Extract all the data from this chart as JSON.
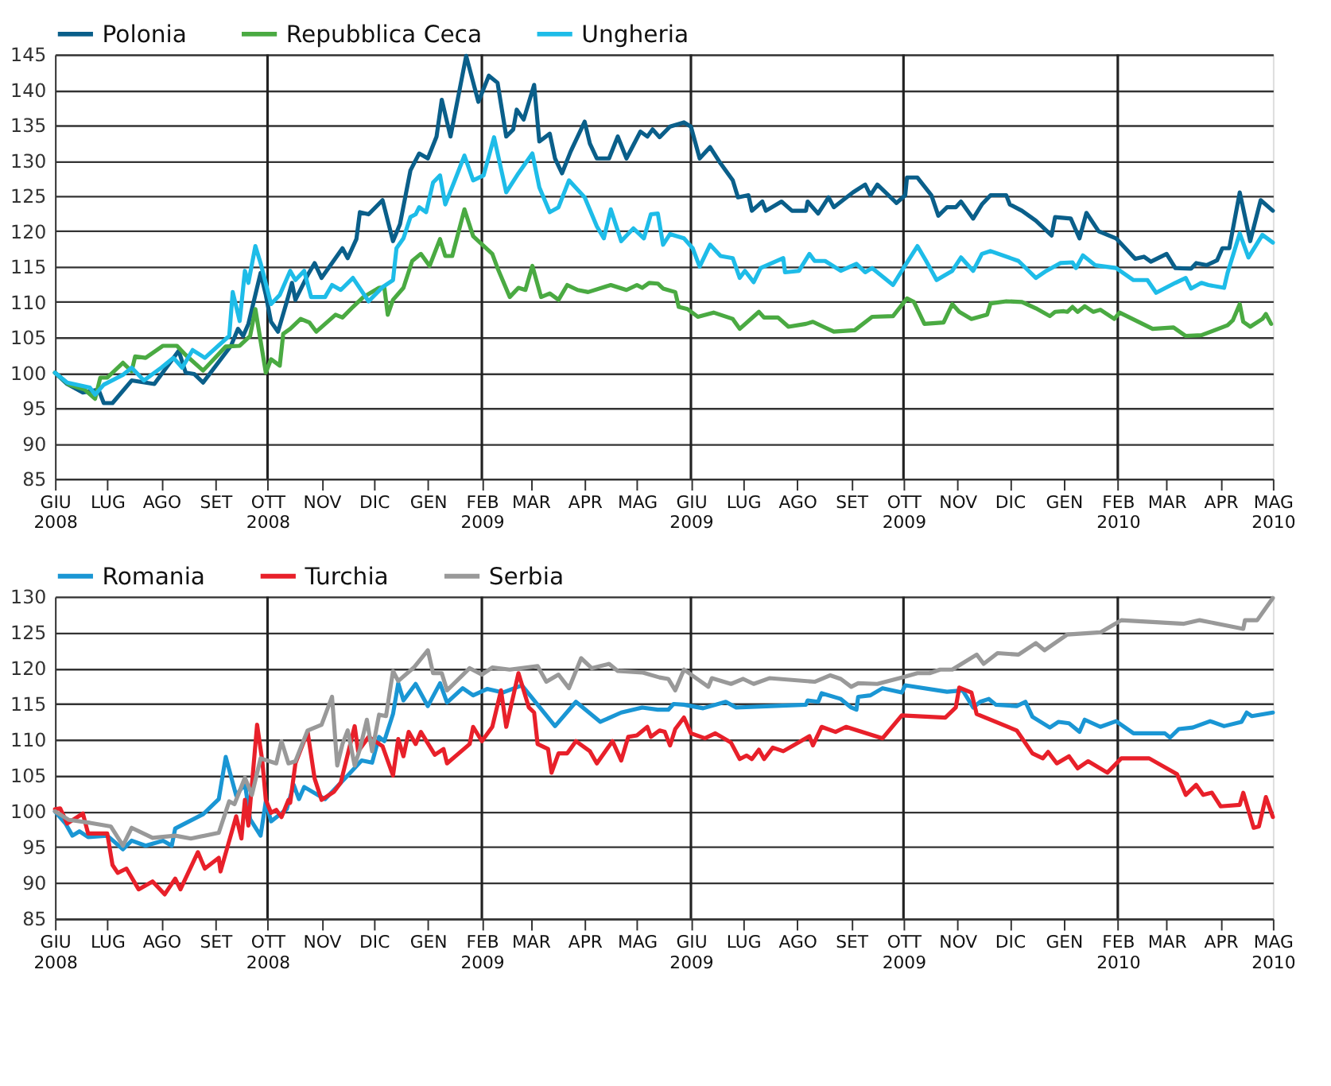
{
  "chart_data": [
    {
      "type": "line",
      "xlim": [
        "2008-06-01",
        "2010-05-01"
      ],
      "ylim": [
        85,
        145
      ],
      "yticks": [
        85,
        90,
        95,
        100,
        105,
        110,
        115,
        120,
        125,
        130,
        135,
        140,
        145
      ],
      "grid": "y",
      "legend": "top",
      "xticks": [
        {
          "value": "2008-06-01",
          "label": "GIU 2008"
        },
        {
          "value": "2008-07-01",
          "label": "LUG"
        },
        {
          "value": "2008-08-01",
          "label": "AGO"
        },
        {
          "value": "2008-09-01",
          "label": "SET"
        },
        {
          "value": "2008-10-01",
          "label": "OTT 2008"
        },
        {
          "value": "2008-11-01",
          "label": "NOV"
        },
        {
          "value": "2008-12-01",
          "label": "DIC"
        },
        {
          "value": "2009-01-01",
          "label": "GEN"
        },
        {
          "value": "2009-02-01",
          "label": "FEB 2009"
        },
        {
          "value": "2009-03-01",
          "label": "MAR"
        },
        {
          "value": "2009-04-01",
          "label": "APR"
        },
        {
          "value": "2009-05-01",
          "label": "MAG"
        },
        {
          "value": "2009-06-01",
          "label": "GIU 2009"
        },
        {
          "value": "2009-07-01",
          "label": "LUG"
        },
        {
          "value": "2009-08-01",
          "label": "AGO"
        },
        {
          "value": "2009-09-01",
          "label": "SET"
        },
        {
          "value": "2009-10-01",
          "label": "OTT 2009"
        },
        {
          "value": "2009-11-01",
          "label": "NOV"
        },
        {
          "value": "2009-12-01",
          "label": "DIC"
        },
        {
          "value": "2010-01-01",
          "label": "GEN"
        },
        {
          "value": "2010-02-01",
          "label": "FEB 2010"
        },
        {
          "value": "2010-03-01",
          "label": "MAR"
        },
        {
          "value": "2010-04-01",
          "label": "APR"
        },
        {
          "value": "2010-05-01",
          "label": "MAG 2010"
        }
      ],
      "ref_lines": [
        {
          "axis": "x",
          "value": "2008-10-01"
        },
        {
          "axis": "x",
          "value": "2009-02-01"
        },
        {
          "axis": "x",
          "value": "2009-06-01"
        },
        {
          "axis": "x",
          "value": "2009-10-01"
        },
        {
          "axis": "x",
          "value": "2010-02-01"
        }
      ],
      "series": [
        {
          "name": "Polonia",
          "color": "#0a5f8a",
          "x": [
            "2008-06-01",
            "2008-06-08",
            "2008-06-17",
            "2008-06-26",
            "2008-06-29",
            "2008-07-04",
            "2008-07-15",
            "2008-07-28",
            "2008-08-11",
            "2008-08-15",
            "2008-08-20",
            "2008-08-25",
            "2008-09-10",
            "2008-09-14",
            "2008-09-17",
            "2008-09-20",
            "2008-09-27",
            "2008-09-30",
            "2008-10-03",
            "2008-10-07",
            "2008-10-12",
            "2008-10-15",
            "2008-10-17",
            "2008-10-24",
            "2008-10-28",
            "2008-11-01",
            "2008-11-13",
            "2008-11-16",
            "2008-11-21",
            "2008-11-23",
            "2008-11-28",
            "2008-12-06",
            "2008-12-12",
            "2008-12-16",
            "2008-12-22",
            "2008-12-27",
            "2009-01-01",
            "2009-01-06",
            "2009-01-09",
            "2009-01-14",
            "2009-01-23",
            "2009-01-30",
            "2009-02-05",
            "2009-02-10",
            "2009-02-15",
            "2009-02-19",
            "2009-02-21",
            "2009-02-25",
            "2009-03-03",
            "2009-03-06",
            "2009-03-12",
            "2009-03-15",
            "2009-03-19",
            "2009-03-24",
            "2009-04-01",
            "2009-04-04",
            "2009-04-08",
            "2009-04-15",
            "2009-04-20",
            "2009-04-25",
            "2009-05-03",
            "2009-05-07",
            "2009-05-10",
            "2009-05-14",
            "2009-05-20",
            "2009-05-28",
            "2009-06-01",
            "2009-06-06",
            "2009-06-12",
            "2009-06-18",
            "2009-06-25",
            "2009-06-28",
            "2009-07-04",
            "2009-07-06",
            "2009-07-12",
            "2009-07-14",
            "2009-07-23",
            "2009-07-29",
            "2009-08-06",
            "2009-08-07",
            "2009-08-13",
            "2009-08-19",
            "2009-08-22",
            "2009-09-02",
            "2009-09-09",
            "2009-09-12",
            "2009-09-16",
            "2009-09-27",
            "2009-10-02",
            "2009-10-03",
            "2009-10-09",
            "2009-10-17",
            "2009-10-21",
            "2009-10-26",
            "2009-10-31",
            "2009-11-03",
            "2009-11-10",
            "2009-11-15",
            "2009-11-20",
            "2009-11-29",
            "2009-12-01",
            "2009-12-08",
            "2009-12-16",
            "2009-12-25",
            "2009-12-27",
            "2010-01-05",
            "2010-01-10",
            "2010-01-14",
            "2010-01-21",
            "2010-01-31",
            "2010-02-11",
            "2010-02-16",
            "2010-02-20",
            "2010-03-01",
            "2010-03-06",
            "2010-03-15",
            "2010-03-18",
            "2010-03-24",
            "2010-03-30",
            "2010-04-02",
            "2010-04-06",
            "2010-04-12",
            "2010-04-18",
            "2010-04-24",
            "2010-05-01"
          ],
          "values": [
            100,
            98.4,
            97.2,
            97.6,
            95.7,
            95.7,
            98.9,
            98.4,
            103.1,
            100,
            99.8,
            98.6,
            103.8,
            106.2,
            105.2,
            106.9,
            114.1,
            111,
            107.2,
            105.8,
            110,
            112.7,
            110.3,
            113.8,
            115.5,
            113.4,
            117.6,
            116.2,
            118.9,
            122.7,
            122.4,
            124.4,
            118.6,
            121,
            128.6,
            131,
            130.3,
            133.4,
            138.6,
            133.4,
            144.8,
            138.3,
            142,
            141,
            133.4,
            134.4,
            137.2,
            135.8,
            140.7,
            132.7,
            133.8,
            130.3,
            128.2,
            131.3,
            135.5,
            132.4,
            130.3,
            130.3,
            133.4,
            130.3,
            134.1,
            133.4,
            134.4,
            133.3,
            134.8,
            135.4,
            134.8,
            130.3,
            131.9,
            129.6,
            127.2,
            124.8,
            125.1,
            122.9,
            124.2,
            122.9,
            124.2,
            122.9,
            122.9,
            124.2,
            122.5,
            124.8,
            123.4,
            125.5,
            126.6,
            125.1,
            126.6,
            124,
            125.1,
            127.6,
            127.6,
            125.1,
            122.2,
            123.4,
            123.4,
            124.2,
            121.8,
            123.8,
            125.1,
            125.1,
            123.8,
            122.9,
            121.5,
            119.4,
            122,
            121.8,
            119,
            122.6,
            120,
            119,
            116.1,
            116.4,
            115.7,
            116.8,
            114.8,
            114.7,
            115.5,
            115.2,
            115.9,
            117.6,
            117.6,
            125.5,
            118.6,
            124.4,
            122.9
          ]
        },
        {
          "name": "Repubblica Ceca",
          "color": "#4aaa42",
          "x": [
            "2008-06-01",
            "2008-06-09",
            "2008-06-18",
            "2008-06-24",
            "2008-06-27",
            "2008-07-01",
            "2008-07-10",
            "2008-07-15",
            "2008-07-17",
            "2008-07-23",
            "2008-08-02",
            "2008-08-10",
            "2008-08-15",
            "2008-08-25",
            "2008-09-07",
            "2008-09-15",
            "2008-09-21",
            "2008-09-24",
            "2008-09-30",
            "2008-10-03",
            "2008-10-08",
            "2008-10-10",
            "2008-10-14",
            "2008-10-20",
            "2008-10-25",
            "2008-10-29",
            "2008-11-09",
            "2008-11-13",
            "2008-11-19",
            "2008-11-25",
            "2008-12-04",
            "2008-12-07",
            "2008-12-09",
            "2008-12-12",
            "2008-12-18",
            "2008-12-23",
            "2008-12-28",
            "2009-01-02",
            "2009-01-08",
            "2009-01-11",
            "2009-01-15",
            "2009-01-22",
            "2009-01-27",
            "2009-02-07",
            "2009-02-10",
            "2009-02-17",
            "2009-02-22",
            "2009-02-26",
            "2009-03-02",
            "2009-03-07",
            "2009-03-12",
            "2009-03-17",
            "2009-03-22",
            "2009-03-28",
            "2009-04-03",
            "2009-04-16",
            "2009-04-25",
            "2009-05-01",
            "2009-05-04",
            "2009-05-08",
            "2009-05-13",
            "2009-05-16",
            "2009-05-23",
            "2009-05-25",
            "2009-05-30",
            "2009-06-05",
            "2009-06-14",
            "2009-06-25",
            "2009-06-29",
            "2009-07-10",
            "2009-07-13",
            "2009-07-21",
            "2009-07-27",
            "2009-08-06",
            "2009-08-10",
            "2009-08-16",
            "2009-08-22",
            "2009-09-03",
            "2009-09-13",
            "2009-09-25",
            "2009-10-03",
            "2009-10-07",
            "2009-10-13",
            "2009-10-24",
            "2009-10-29",
            "2009-11-02",
            "2009-11-09",
            "2009-11-18",
            "2009-11-20",
            "2009-11-29",
            "2009-12-08",
            "2009-12-16",
            "2009-12-24",
            "2009-12-27",
            "2010-01-01",
            "2010-01-03",
            "2010-01-06",
            "2010-01-09",
            "2010-01-13",
            "2010-01-18",
            "2010-01-22",
            "2010-01-30",
            "2010-02-02",
            "2010-02-21",
            "2010-03-05",
            "2010-03-12",
            "2010-03-21",
            "2010-04-05",
            "2010-04-08",
            "2010-04-12",
            "2010-04-14",
            "2010-04-18",
            "2010-04-25",
            "2010-04-27",
            "2010-04-30"
          ],
          "values": [
            100,
            98.3,
            97.6,
            96.3,
            99.3,
            99.3,
            101.4,
            100.2,
            102.3,
            102.1,
            103.8,
            103.8,
            102.5,
            100.3,
            103.7,
            103.8,
            105.2,
            109,
            100,
            101.9,
            101,
            105.5,
            106.2,
            107.6,
            107.1,
            105.8,
            108.2,
            107.8,
            109.3,
            110.7,
            112,
            112.1,
            108.2,
            110.3,
            112,
            115.8,
            116.8,
            115.1,
            118.9,
            116.5,
            116.5,
            123.1,
            119.3,
            116.8,
            114.8,
            110.7,
            112,
            111.7,
            115.1,
            110.7,
            111.2,
            110.3,
            112.4,
            111.7,
            111.4,
            112.4,
            111.7,
            112.4,
            112,
            112.7,
            112.6,
            111.9,
            111.4,
            109.3,
            109,
            107.9,
            108.5,
            107.6,
            106.2,
            108.6,
            107.8,
            107.8,
            106.5,
            106.9,
            107.2,
            106.5,
            105.8,
            106,
            107.9,
            108,
            110.5,
            110,
            106.9,
            107.1,
            109.7,
            108.6,
            107.6,
            108.2,
            109.8,
            110.1,
            110,
            109.1,
            108,
            108.6,
            108.7,
            108.6,
            109.3,
            108.6,
            109.4,
            108.6,
            108.9,
            107.6,
            108.5,
            106.2,
            106.4,
            105.2,
            105.3,
            106.7,
            107.4,
            109.7,
            107.2,
            106.5,
            107.6,
            108.3,
            106.9
          ]
        },
        {
          "name": "Ungheria",
          "color": "#1ebce8",
          "x": [
            "2008-06-01",
            "2008-06-08",
            "2008-06-21",
            "2008-06-24",
            "2008-06-29",
            "2008-07-10",
            "2008-07-15",
            "2008-07-22",
            "2008-08-01",
            "2008-08-08",
            "2008-08-13",
            "2008-08-19",
            "2008-08-26",
            "2008-09-09",
            "2008-09-11",
            "2008-09-15",
            "2008-09-18",
            "2008-09-20",
            "2008-09-24",
            "2008-09-27",
            "2008-10-03",
            "2008-10-08",
            "2008-10-14",
            "2008-10-17",
            "2008-10-22",
            "2008-10-26",
            "2008-11-03",
            "2008-11-07",
            "2008-11-12",
            "2008-11-19",
            "2008-11-28",
            "2008-12-06",
            "2008-12-12",
            "2008-12-14",
            "2008-12-18",
            "2008-12-22",
            "2008-12-25",
            "2008-12-27",
            "2008-12-31",
            "2009-01-04",
            "2009-01-08",
            "2009-01-11",
            "2009-01-16",
            "2009-01-22",
            "2009-01-27",
            "2009-02-02",
            "2009-02-08",
            "2009-02-15",
            "2009-02-22",
            "2009-03-02",
            "2009-03-06",
            "2009-03-12",
            "2009-03-17",
            "2009-03-23",
            "2009-04-01",
            "2009-04-08",
            "2009-04-12",
            "2009-04-16",
            "2009-04-22",
            "2009-04-29",
            "2009-05-05",
            "2009-05-09",
            "2009-05-13",
            "2009-05-16",
            "2009-05-20",
            "2009-05-28",
            "2009-06-02",
            "2009-06-06",
            "2009-06-12",
            "2009-06-18",
            "2009-06-25",
            "2009-06-29",
            "2009-07-02",
            "2009-07-07",
            "2009-07-11",
            "2009-07-24",
            "2009-07-25",
            "2009-08-02",
            "2009-08-08",
            "2009-08-11",
            "2009-08-17",
            "2009-08-26",
            "2009-09-04",
            "2009-09-09",
            "2009-09-13",
            "2009-09-25",
            "2009-10-01",
            "2009-10-09",
            "2009-10-14",
            "2009-10-20",
            "2009-10-29",
            "2009-11-03",
            "2009-11-10",
            "2009-11-15",
            "2009-11-20",
            "2009-12-06",
            "2009-12-16",
            "2009-12-22",
            "2009-12-30",
            "2010-01-06",
            "2010-01-08",
            "2010-01-12",
            "2010-01-19",
            "2010-01-31",
            "2010-02-10",
            "2010-02-18",
            "2010-02-23",
            "2010-03-06",
            "2010-03-12",
            "2010-03-15",
            "2010-03-21",
            "2010-03-25",
            "2010-04-03",
            "2010-04-05",
            "2010-04-12",
            "2010-04-17",
            "2010-04-25",
            "2010-05-01"
          ],
          "values": [
            100,
            98.6,
            97.9,
            96.9,
            98.3,
            99.7,
            100.7,
            98.9,
            100.7,
            102.1,
            100.7,
            103.2,
            102.1,
            105.2,
            111.4,
            107.3,
            114.4,
            112.7,
            117.9,
            115.5,
            109.7,
            111,
            114.4,
            113.1,
            114.4,
            110.7,
            110.7,
            112.4,
            111.7,
            113.4,
            110.1,
            112.1,
            113.1,
            117.6,
            119,
            122,
            122.4,
            123.4,
            122.7,
            126.9,
            127.9,
            123.8,
            126.9,
            130.7,
            127.2,
            127.9,
            133.3,
            125.5,
            128.2,
            131,
            126.2,
            122.7,
            123.4,
            127.2,
            124.8,
            120.7,
            119,
            123.1,
            118.6,
            120.4,
            119,
            122.4,
            122.5,
            118.1,
            119.6,
            119,
            117.6,
            115,
            118.1,
            116.5,
            116.2,
            113.4,
            114.4,
            112.8,
            114.8,
            116.2,
            114.2,
            114.4,
            116.8,
            115.8,
            115.8,
            114.4,
            115.4,
            114.2,
            114.8,
            112.4,
            114.8,
            117.9,
            115.8,
            113.1,
            114.4,
            116.3,
            114.4,
            116.8,
            117.2,
            115.8,
            113.4,
            114.4,
            115.5,
            115.6,
            114.8,
            116.6,
            115.2,
            114.8,
            113.1,
            113.1,
            111.3,
            112.7,
            113.4,
            111.9,
            112.7,
            112.4,
            112,
            114.1,
            119.7,
            116.3,
            119.5,
            118.4
          ]
        }
      ]
    },
    {
      "type": "line",
      "xlim": [
        "2008-06-01",
        "2010-05-01"
      ],
      "ylim": [
        85,
        130
      ],
      "yticks": [
        85,
        90,
        95,
        100,
        105,
        110,
        115,
        120,
        125,
        130
      ],
      "grid": "y",
      "legend": "top",
      "xticks": [
        {
          "value": "2008-06-01",
          "label": "GIU 2008"
        },
        {
          "value": "2008-07-01",
          "label": "LUG"
        },
        {
          "value": "2008-08-01",
          "label": "AGO"
        },
        {
          "value": "2008-09-01",
          "label": "SET"
        },
        {
          "value": "2008-10-01",
          "label": "OTT 2008"
        },
        {
          "value": "2008-11-01",
          "label": "NOV"
        },
        {
          "value": "2008-12-01",
          "label": "DIC"
        },
        {
          "value": "2009-01-01",
          "label": "GEN"
        },
        {
          "value": "2009-02-01",
          "label": "FEB 2009"
        },
        {
          "value": "2009-03-01",
          "label": "MAR"
        },
        {
          "value": "2009-04-01",
          "label": "APR"
        },
        {
          "value": "2009-05-01",
          "label": "MAG"
        },
        {
          "value": "2009-06-01",
          "label": "GIU 2009"
        },
        {
          "value": "2009-07-01",
          "label": "LUG"
        },
        {
          "value": "2009-08-01",
          "label": "AGO"
        },
        {
          "value": "2009-09-01",
          "label": "SET"
        },
        {
          "value": "2009-10-01",
          "label": "OTT 2009"
        },
        {
          "value": "2009-11-01",
          "label": "NOV"
        },
        {
          "value": "2009-12-01",
          "label": "DIC"
        },
        {
          "value": "2010-01-01",
          "label": "GEN"
        },
        {
          "value": "2010-02-01",
          "label": "FEB 2010"
        },
        {
          "value": "2010-03-01",
          "label": "MAR"
        },
        {
          "value": "2010-04-01",
          "label": "APR"
        },
        {
          "value": "2010-05-01",
          "label": "MAG 2010"
        }
      ],
      "ref_lines": [
        {
          "axis": "x",
          "value": "2008-10-01"
        },
        {
          "axis": "x",
          "value": "2009-02-01"
        },
        {
          "axis": "x",
          "value": "2009-06-01"
        },
        {
          "axis": "x",
          "value": "2009-10-01"
        },
        {
          "axis": "x",
          "value": "2010-02-01"
        }
      ],
      "series": [
        {
          "name": "Romania",
          "color": "#1a96d4",
          "x": [
            "2008-06-01",
            "2008-06-07",
            "2008-06-11",
            "2008-06-15",
            "2008-06-20",
            "2008-07-01",
            "2008-07-10",
            "2008-07-15",
            "2008-07-23",
            "2008-08-02",
            "2008-08-07",
            "2008-08-09",
            "2008-08-25",
            "2008-09-03",
            "2008-09-07",
            "2008-09-13",
            "2008-09-18",
            "2008-09-21",
            "2008-09-27",
            "2008-09-30",
            "2008-10-03",
            "2008-10-12",
            "2008-10-16",
            "2008-10-19",
            "2008-10-22",
            "2008-11-03",
            "2008-11-16",
            "2008-11-24",
            "2008-11-30",
            "2008-12-04",
            "2008-12-07",
            "2008-12-12",
            "2008-12-15",
            "2008-12-18",
            "2008-12-25",
            "2009-01-01",
            "2009-01-08",
            "2009-01-12",
            "2009-01-21",
            "2009-01-27",
            "2009-02-04",
            "2009-02-13",
            "2009-02-24",
            "2009-03-15",
            "2009-03-27",
            "2009-04-10",
            "2009-04-22",
            "2009-05-04",
            "2009-05-13",
            "2009-05-19",
            "2009-05-22",
            "2009-05-28",
            "2009-06-08",
            "2009-06-21",
            "2009-06-27",
            "2009-08-06",
            "2009-08-07",
            "2009-08-13",
            "2009-08-15",
            "2009-08-26",
            "2009-09-01",
            "2009-09-04",
            "2009-09-05",
            "2009-09-12",
            "2009-09-19",
            "2009-09-30",
            "2009-10-02",
            "2009-10-26",
            "2009-11-04",
            "2009-11-10",
            "2009-11-14",
            "2009-11-19",
            "2009-11-23",
            "2009-12-05",
            "2009-12-10",
            "2009-12-14",
            "2009-12-24",
            "2009-12-29",
            "2010-01-04",
            "2010-01-10",
            "2010-01-13",
            "2010-01-22",
            "2010-01-31",
            "2010-02-10",
            "2010-02-28",
            "2010-03-03",
            "2010-03-08",
            "2010-03-16",
            "2010-03-26",
            "2010-04-03",
            "2010-04-13",
            "2010-04-16",
            "2010-04-19",
            "2010-05-01"
          ],
          "values": [
            100,
            98.3,
            96.6,
            97.2,
            96.4,
            96.6,
            94.7,
            95.9,
            95.2,
            95.9,
            95.2,
            97.6,
            99.6,
            101.7,
            107.6,
            102.2,
            103.9,
            98.9,
            96.6,
            101.4,
            98.6,
            100.3,
            103.7,
            101.7,
            103.4,
            101.7,
            105,
            107.1,
            106.8,
            110.4,
            109.8,
            113.6,
            117.9,
            115.5,
            117.8,
            114.7,
            117.9,
            115.2,
            117.2,
            116.2,
            117.1,
            116.6,
            117.6,
            111.9,
            115.3,
            112.5,
            113.8,
            114.5,
            114.2,
            114.2,
            115,
            114.9,
            114.4,
            115.3,
            114.5,
            114.9,
            115.5,
            115.3,
            116.5,
            115.7,
            114.5,
            114.2,
            116,
            116.2,
            117.2,
            116.6,
            117.6,
            116.7,
            116.9,
            114.5,
            115.3,
            115.7,
            114.9,
            114.7,
            115.3,
            113.2,
            111.7,
            112.5,
            112.3,
            111.1,
            112.8,
            111.8,
            112.6,
            110.9,
            110.9,
            110.3,
            111.5,
            111.7,
            112.6,
            111.9,
            112.5,
            113.8,
            113.3,
            113.8
          ]
        },
        {
          "name": "Turchia",
          "color": "#e8202a",
          "x": [
            "2008-06-01",
            "2008-06-04",
            "2008-06-08",
            "2008-06-17",
            "2008-06-20",
            "2008-07-01",
            "2008-07-04",
            "2008-07-07",
            "2008-07-12",
            "2008-07-19",
            "2008-07-27",
            "2008-08-03",
            "2008-08-09",
            "2008-08-12",
            "2008-08-22",
            "2008-08-26",
            "2008-09-03",
            "2008-09-04",
            "2008-09-13",
            "2008-09-16",
            "2008-09-18",
            "2008-09-20",
            "2008-09-25",
            "2008-09-28",
            "2008-09-30",
            "2008-10-03",
            "2008-10-06",
            "2008-10-09",
            "2008-10-13",
            "2008-10-14",
            "2008-10-17",
            "2008-10-24",
            "2008-10-28",
            "2008-11-01",
            "2008-11-08",
            "2008-11-12",
            "2008-11-20",
            "2008-11-22",
            "2008-11-28",
            "2008-12-06",
            "2008-12-12",
            "2008-12-15",
            "2008-12-18",
            "2008-12-21",
            "2008-12-25",
            "2008-12-28",
            "2009-01-05",
            "2009-01-10",
            "2009-01-12",
            "2009-01-25",
            "2009-01-27",
            "2009-02-01",
            "2009-02-07",
            "2009-02-12",
            "2009-02-15",
            "2009-02-22",
            "2009-02-28",
            "2009-03-03",
            "2009-03-05",
            "2009-03-11",
            "2009-03-13",
            "2009-03-17",
            "2009-03-22",
            "2009-03-27",
            "2009-04-04",
            "2009-04-08",
            "2009-04-17",
            "2009-04-22",
            "2009-04-26",
            "2009-05-01",
            "2009-05-07",
            "2009-05-09",
            "2009-05-14",
            "2009-05-17",
            "2009-05-20",
            "2009-05-23",
            "2009-05-28",
            "2009-06-01",
            "2009-06-09",
            "2009-06-15",
            "2009-06-24",
            "2009-06-29",
            "2009-07-03",
            "2009-07-06",
            "2009-07-10",
            "2009-07-13",
            "2009-07-18",
            "2009-07-24",
            "2009-08-08",
            "2009-08-10",
            "2009-08-15",
            "2009-08-23",
            "2009-08-29",
            "2009-09-19",
            "2009-09-30",
            "2009-10-25",
            "2009-10-31",
            "2009-11-02",
            "2009-11-09",
            "2009-11-12",
            "2009-12-05",
            "2009-12-14",
            "2009-12-20",
            "2009-12-23",
            "2009-12-28",
            "2010-01-04",
            "2010-01-09",
            "2010-01-15",
            "2010-01-26",
            "2010-02-03",
            "2010-02-19",
            "2010-03-07",
            "2010-03-12",
            "2010-03-18",
            "2010-03-22",
            "2010-03-27",
            "2010-04-01",
            "2010-04-12",
            "2010-04-14",
            "2010-04-20",
            "2010-04-23",
            "2010-04-27",
            "2010-05-01"
          ],
          "values": [
            100.3,
            100.4,
            98.3,
            99.7,
            96.9,
            96.9,
            92.5,
            91.4,
            92,
            89.1,
            90.2,
            88.4,
            90.6,
            89.1,
            94.3,
            92,
            93.5,
            91.6,
            99.3,
            96.2,
            101.6,
            98,
            112.1,
            107,
            101.6,
            99.8,
            100.2,
            99.2,
            101.6,
            101.2,
            106.7,
            111.1,
            104.6,
            101.6,
            102.7,
            104,
            111.9,
            108.4,
            110.4,
            109.1,
            105,
            110.1,
            107.7,
            111.1,
            109.4,
            111.1,
            107.9,
            108.7,
            106.7,
            109.4,
            111.8,
            109.8,
            111.8,
            116.9,
            111.8,
            119.3,
            114.5,
            113.8,
            109.4,
            108.7,
            105.4,
            108.1,
            108.1,
            109.8,
            108.4,
            106.7,
            109.8,
            107.1,
            110.4,
            110.6,
            111.8,
            110.4,
            111.3,
            111.1,
            109.2,
            111.5,
            113.1,
            110.9,
            110.2,
            110.9,
            109.6,
            107.3,
            107.8,
            107.3,
            108.6,
            107.3,
            108.9,
            108.4,
            110.5,
            109.2,
            111.8,
            111.1,
            111.8,
            110.2,
            113.4,
            113.1,
            114.5,
            117.3,
            116.6,
            113.6,
            111.3,
            108.1,
            107.4,
            108.3,
            106.7,
            107.7,
            106,
            107,
            105.4,
            107.4,
            107.4,
            105.2,
            102.3,
            103.7,
            102.3,
            102.6,
            100.7,
            100.9,
            102.6,
            97.7,
            97.9,
            102,
            99.2
          ]
        },
        {
          "name": "Serbia",
          "color": "#999999",
          "x": [
            "2008-06-01",
            "2008-06-09",
            "2008-06-21",
            "2008-07-03",
            "2008-07-10",
            "2008-07-15",
            "2008-07-27",
            "2008-08-09",
            "2008-08-18",
            "2008-09-03",
            "2008-09-09",
            "2008-09-12",
            "2008-09-18",
            "2008-09-22",
            "2008-09-27",
            "2008-10-06",
            "2008-10-09",
            "2008-10-13",
            "2008-10-17",
            "2008-10-24",
            "2008-11-01",
            "2008-11-07",
            "2008-11-10",
            "2008-11-13",
            "2008-11-16",
            "2008-11-20",
            "2008-11-23",
            "2008-11-27",
            "2008-11-30",
            "2008-12-04",
            "2008-12-08",
            "2008-12-12",
            "2008-12-15",
            "2008-12-24",
            "2009-01-01",
            "2009-01-04",
            "2009-01-09",
            "2009-01-12",
            "2009-01-17",
            "2009-01-25",
            "2009-02-01",
            "2009-02-07",
            "2009-02-17",
            "2009-03-05",
            "2009-03-10",
            "2009-03-17",
            "2009-03-23",
            "2009-03-30",
            "2009-04-05",
            "2009-04-15",
            "2009-04-20",
            "2009-05-04",
            "2009-05-14",
            "2009-05-19",
            "2009-05-23",
            "2009-05-28",
            "2009-06-11",
            "2009-06-13",
            "2009-06-24",
            "2009-07-01",
            "2009-07-07",
            "2009-07-16",
            "2009-08-11",
            "2009-08-20",
            "2009-08-26",
            "2009-09-01",
            "2009-09-05",
            "2009-09-16",
            "2009-09-30",
            "2009-10-09",
            "2009-10-16",
            "2009-10-22",
            "2009-10-29",
            "2009-11-12",
            "2009-11-16",
            "2009-11-24",
            "2009-12-06",
            "2009-12-16",
            "2009-12-21",
            "2010-01-03",
            "2010-01-22",
            "2010-02-03",
            "2010-03-11",
            "2010-03-20",
            "2010-04-14",
            "2010-04-15",
            "2010-04-22",
            "2010-05-01"
          ],
          "values": [
            100,
            98.8,
            98.4,
            97.9,
            95.2,
            97.7,
            96.3,
            96.6,
            96.2,
            97,
            101.4,
            101,
            104.7,
            102.3,
            107.4,
            106.7,
            109.8,
            106.7,
            107,
            111.3,
            112.1,
            116,
            106.4,
            109.4,
            111.3,
            106.4,
            108.7,
            112.8,
            108.4,
            113.5,
            113.3,
            119.6,
            118.2,
            120.1,
            122.5,
            119.3,
            119.3,
            116.9,
            118.1,
            120,
            119.1,
            120.1,
            119.8,
            120.3,
            118.1,
            119.1,
            117.2,
            121.4,
            120,
            120.6,
            119.6,
            119.4,
            118.7,
            118.5,
            116.9,
            119.8,
            117.4,
            118.6,
            117.8,
            118.5,
            117.8,
            118.6,
            118.1,
            119,
            118.5,
            117.4,
            117.9,
            117.8,
            118.7,
            119.3,
            119.3,
            119.8,
            119.8,
            121.9,
            120.6,
            122.1,
            121.9,
            123.5,
            122.5,
            124.7,
            125,
            126.7,
            126.2,
            126.7,
            125.5,
            126.7,
            126.7,
            129.8
          ]
        }
      ]
    }
  ]
}
